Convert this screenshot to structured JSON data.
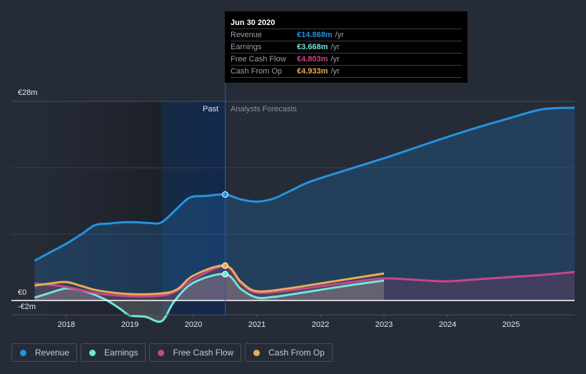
{
  "tooltip": {
    "date": "Jun 30 2020",
    "rows": [
      {
        "label": "Revenue",
        "value": "€14.868m",
        "unit": "/yr",
        "color": "#2394df"
      },
      {
        "label": "Earnings",
        "value": "€3.668m",
        "unit": "/yr",
        "color": "#6ee7d8"
      },
      {
        "label": "Free Cash Flow",
        "value": "€4.803m",
        "unit": "/yr",
        "color": "#c7478a"
      },
      {
        "label": "Cash From Op",
        "value": "€4.933m",
        "unit": "/yr",
        "color": "#e9ac59"
      }
    ]
  },
  "annotations": {
    "past": "Past",
    "forecast": "Analysts Forecasts"
  },
  "legend": [
    {
      "label": "Revenue",
      "color": "#2394df"
    },
    {
      "label": "Earnings",
      "color": "#6ee7d8"
    },
    {
      "label": "Free Cash Flow",
      "color": "#c7478a"
    },
    {
      "label": "Cash From Op",
      "color": "#e9ac59"
    }
  ],
  "chart_data": {
    "type": "area",
    "title": "",
    "xlabel": "",
    "ylabel": "",
    "ylim": [
      -2,
      28
    ],
    "xlim": [
      2017.5,
      2026.0
    ],
    "y_tick_labels": [
      "€28m",
      "€0",
      "-€2m"
    ],
    "y_ticks": [
      28,
      0,
      -2
    ],
    "x_tick_labels": [
      "2018",
      "2019",
      "2020",
      "2021",
      "2022",
      "2023",
      "2024",
      "2025"
    ],
    "x_ticks": [
      2018,
      2019,
      2020,
      2021,
      2022,
      2023,
      2024,
      2025
    ],
    "grid": true,
    "past_forecast_divider": 2020.5,
    "highlight_x": 2020.5,
    "legend_position": "bottom-left",
    "series": [
      {
        "name": "Revenue",
        "color": "#2394df",
        "x": [
          2017.5,
          2017.75,
          2018.0,
          2018.25,
          2018.45,
          2018.65,
          2018.9,
          2019.1,
          2019.3,
          2019.5,
          2019.75,
          2019.95,
          2020.2,
          2020.5,
          2020.75,
          2021.0,
          2021.25,
          2021.5,
          2021.75,
          2022.0,
          2022.5,
          2023.0,
          2023.5,
          2024.0,
          2024.5,
          2025.0,
          2025.5,
          2026.0
        ],
        "y": [
          5.6,
          6.8,
          8.0,
          9.4,
          10.6,
          10.8,
          11.0,
          11.0,
          10.9,
          11.0,
          13.0,
          14.5,
          14.7,
          14.9,
          14.2,
          13.9,
          14.3,
          15.3,
          16.4,
          17.2,
          18.6,
          20.0,
          21.5,
          23.0,
          24.4,
          25.7,
          26.9,
          27.1
        ]
      },
      {
        "name": "Earnings",
        "color": "#6ee7d8",
        "x": [
          2017.5,
          2017.75,
          2018.0,
          2018.25,
          2018.6,
          2018.85,
          2019.0,
          2019.25,
          2019.5,
          2019.7,
          2020.0,
          2020.5,
          2020.75,
          2021.0,
          2021.25,
          2021.5,
          2022.0,
          2022.5,
          2023.0
        ],
        "y": [
          0.4,
          1.1,
          1.7,
          1.4,
          0.2,
          -1.2,
          -2.1,
          -2.3,
          -2.9,
          -0.1,
          2.5,
          3.7,
          1.6,
          0.4,
          0.5,
          0.8,
          1.5,
          2.2,
          2.8
        ]
      },
      {
        "name": "Free Cash Flow",
        "color": "#c7478a",
        "x": [
          2017.5,
          2017.75,
          2018.0,
          2018.5,
          2019.0,
          2019.5,
          2019.75,
          2020.0,
          2020.5,
          2020.75,
          2021.0,
          2021.5,
          2022.0,
          2022.5,
          2023.0,
          2023.5,
          2024.0,
          2024.5,
          2025.0,
          2025.5,
          2026.0
        ],
        "y": [
          2.4,
          2.2,
          1.9,
          1.0,
          0.6,
          0.7,
          1.4,
          3.0,
          4.8,
          2.4,
          1.1,
          1.4,
          2.0,
          2.6,
          3.1,
          2.9,
          2.7,
          3.0,
          3.3,
          3.6,
          4.0
        ]
      },
      {
        "name": "Cash From Op",
        "color": "#e9ac59",
        "x": [
          2017.5,
          2017.75,
          2018.0,
          2018.25,
          2018.5,
          2019.0,
          2019.5,
          2019.75,
          2020.0,
          2020.5,
          2020.75,
          2021.0,
          2021.5,
          2022.0,
          2022.5,
          2023.0
        ],
        "y": [
          2.1,
          2.4,
          2.6,
          2.0,
          1.4,
          0.9,
          1.0,
          1.6,
          3.5,
          4.9,
          2.6,
          1.3,
          1.7,
          2.4,
          3.1,
          3.8
        ]
      }
    ]
  }
}
